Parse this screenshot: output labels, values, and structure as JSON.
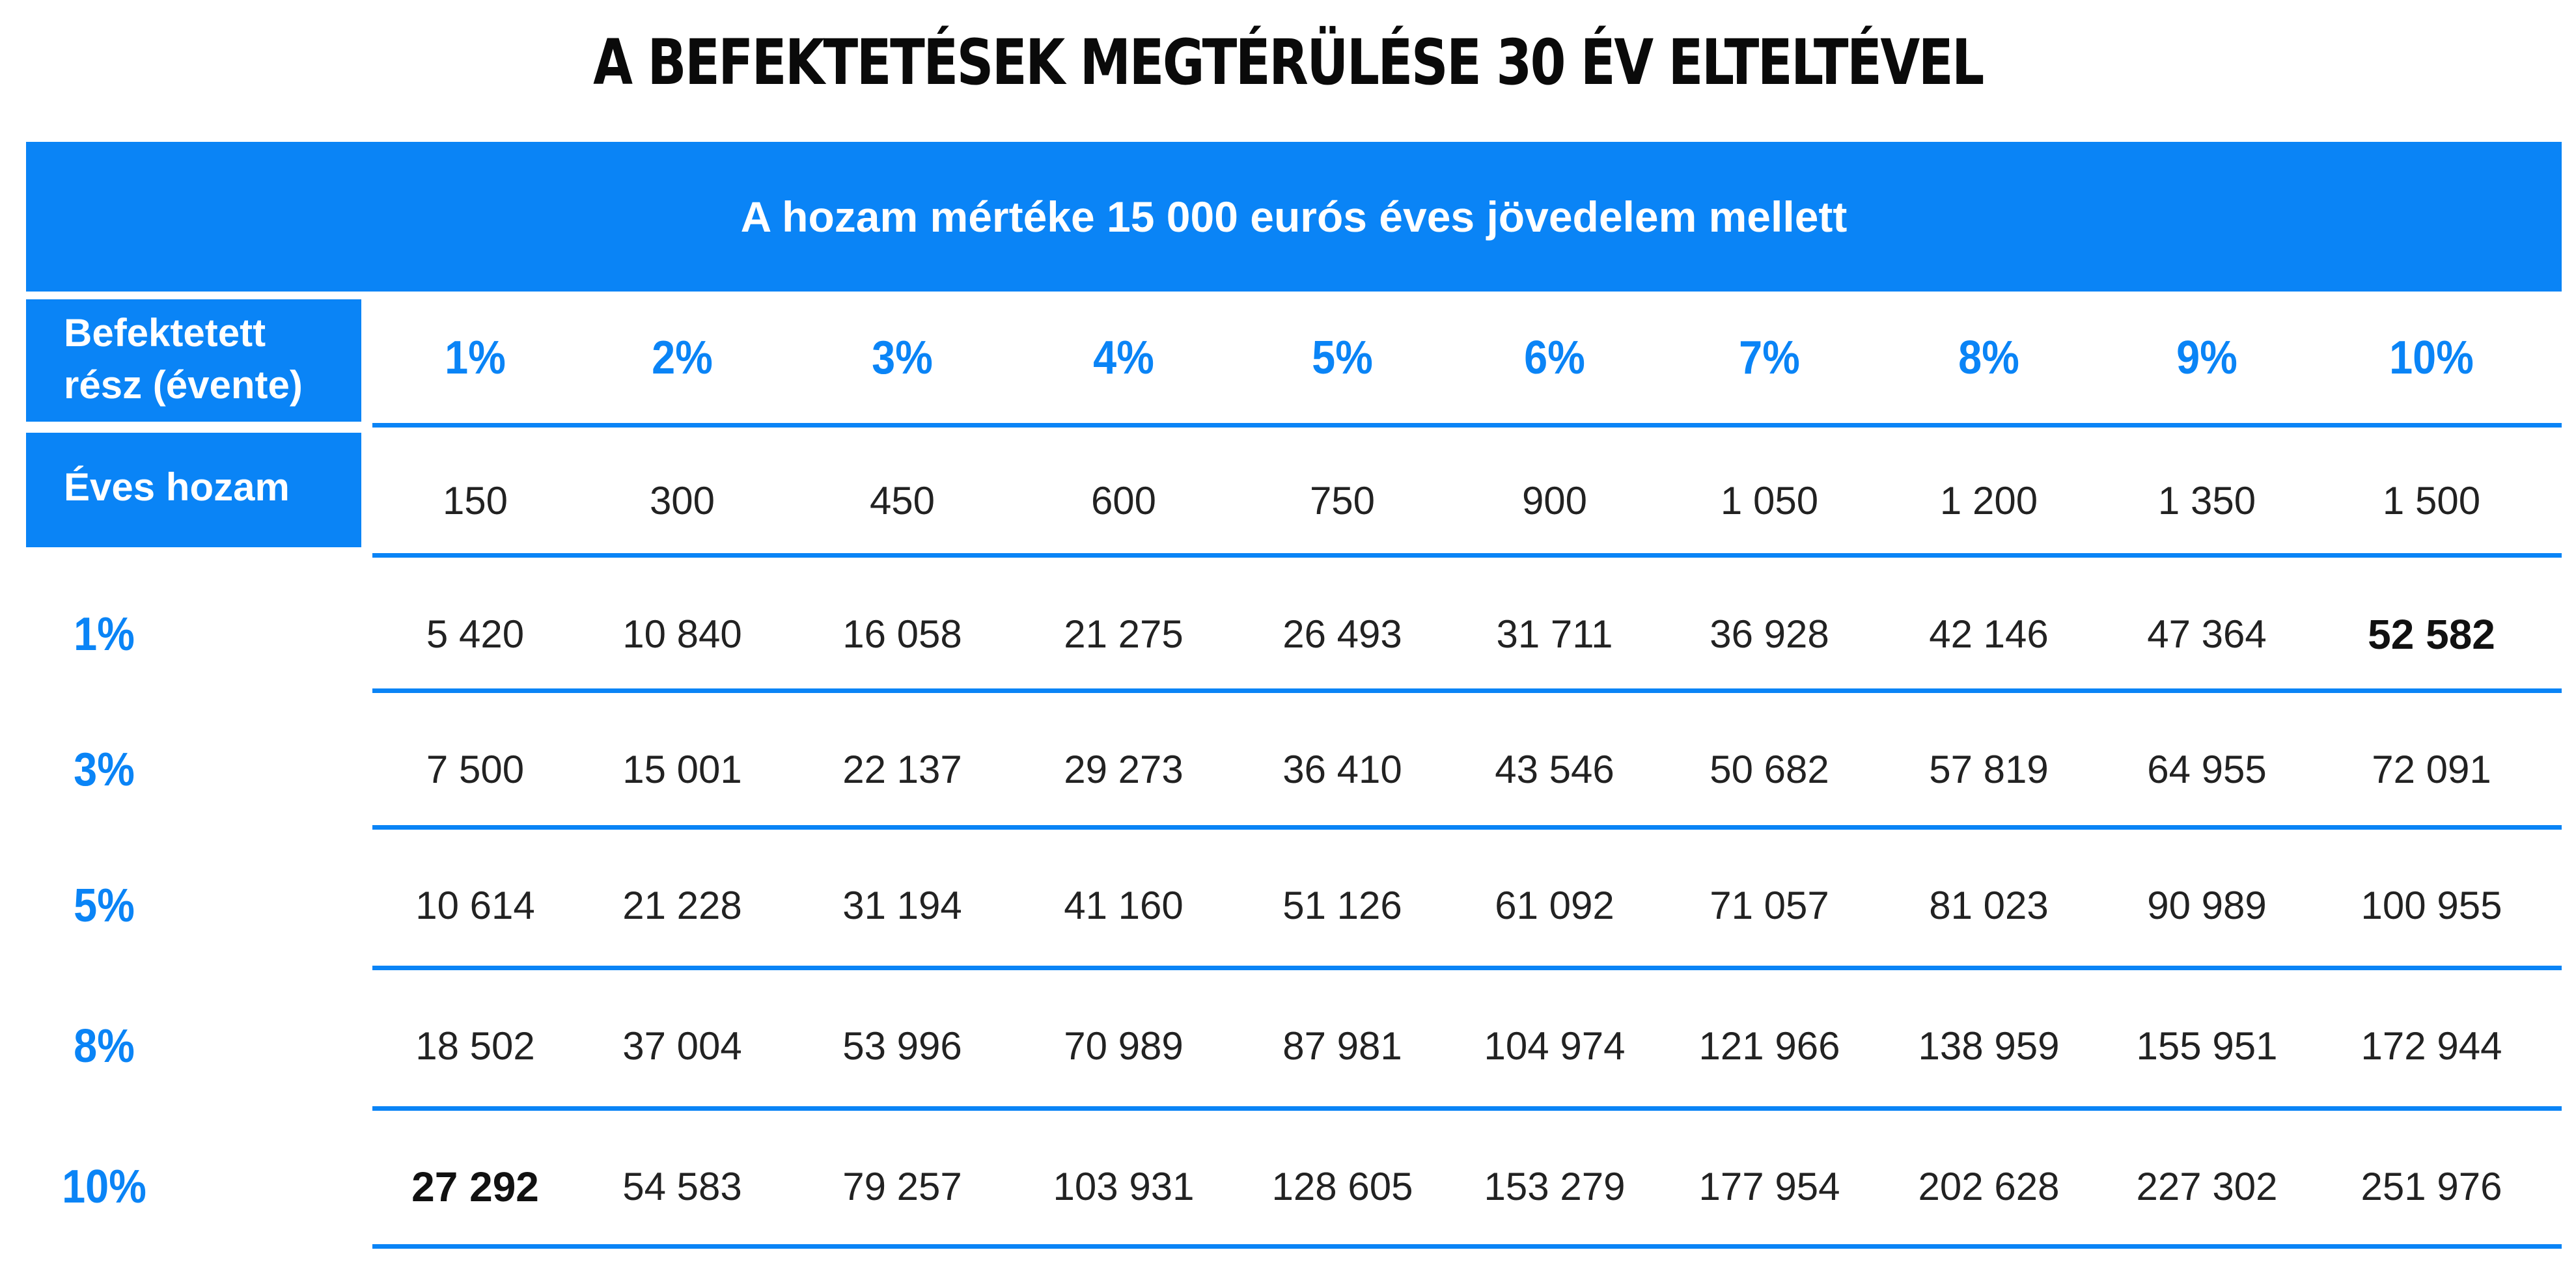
{
  "title": "A BEFEKTETÉSEK MEGTÉRÜLÉSE 30 ÉV ELTELTÉVEL",
  "header": "A hozam mértéke 15 000 eurós éves jövedelem mellett",
  "labels": {
    "invested_line1": "Befektetett",
    "invested_line2": "rész (évente)",
    "annual_return": "Éves hozam"
  },
  "colors": {
    "accent": "#0a84f6",
    "text": "#222222"
  },
  "chart_data": {
    "type": "table",
    "title": "A BEFEKTETÉSEK MEGTÉRÜLÉSE 30 ÉV ELTELTÉVEL",
    "subtitle": "A hozam mértéke 15 000 eurós éves jövedelem mellett",
    "columns": [
      "1%",
      "2%",
      "3%",
      "4%",
      "5%",
      "6%",
      "7%",
      "8%",
      "9%",
      "10%"
    ],
    "annual_return": [
      "150",
      "300",
      "450",
      "600",
      "750",
      "900",
      "1 050",
      "1 200",
      "1 350",
      "1 500"
    ],
    "rows": [
      {
        "rate": "1%",
        "values": [
          "5 420",
          "10 840",
          "16 058",
          "21 275",
          "26 493",
          "31 711",
          "36 928",
          "42 146",
          "47 364",
          "52 582"
        ]
      },
      {
        "rate": "3%",
        "values": [
          "7 500",
          "15 001",
          "22 137",
          "29 273",
          "36 410",
          "43 546",
          "50 682",
          "57 819",
          "64 955",
          "72 091"
        ]
      },
      {
        "rate": "5%",
        "values": [
          "10 614",
          "21 228",
          "31 194",
          "41 160",
          "51 126",
          "61 092",
          "71 057",
          "81 023",
          "90 989",
          "100 955"
        ]
      },
      {
        "rate": "8%",
        "values": [
          "18 502",
          "37 004",
          "53 996",
          "70 989",
          "87 981",
          "104 974",
          "121 966",
          "138 959",
          "155 951",
          "172 944"
        ]
      },
      {
        "rate": "10%",
        "values": [
          "27 292",
          "54 583",
          "79 257",
          "103 931",
          "128 605",
          "153 279",
          "177 954",
          "202 628",
          "227 302",
          "251 976"
        ]
      }
    ],
    "bold_cells": [
      {
        "row": 0,
        "col": 9
      },
      {
        "row": 4,
        "col": 0
      }
    ]
  }
}
